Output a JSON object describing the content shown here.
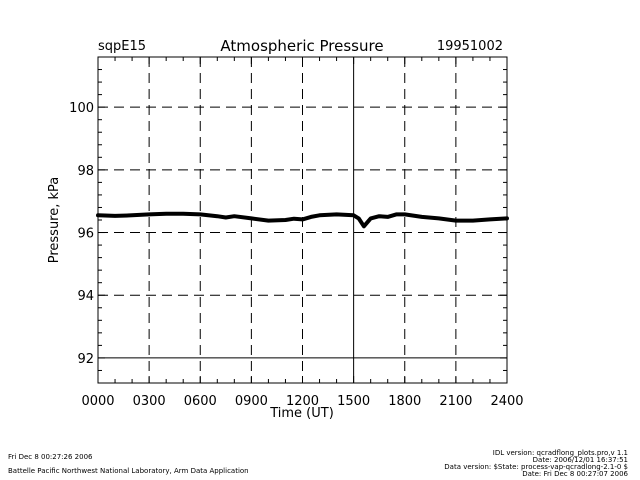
{
  "chart_data": {
    "type": "line",
    "title": "Atmospheric Pressure",
    "site": "sqpE15",
    "date": "19951002",
    "xlabel": "Time (UT)",
    "ylabel": "Pressure, kPa",
    "xlim": [
      0,
      2400
    ],
    "ylim": [
      91.2,
      101.6
    ],
    "x_ticks": [
      0,
      300,
      600,
      900,
      1200,
      1500,
      1800,
      2100,
      2400
    ],
    "x_tick_labels": [
      "0000",
      "0300",
      "0600",
      "0900",
      "1200",
      "1500",
      "1800",
      "2100",
      "2400"
    ],
    "y_ticks": [
      92,
      94,
      96,
      98,
      100
    ],
    "y_tick_labels": [
      "92",
      "94",
      "96",
      "98",
      "100"
    ],
    "solid_hlines": [
      92
    ],
    "solid_vlines": [
      1500
    ],
    "series": [
      {
        "name": "Atmospheric Pressure",
        "x": [
          0,
          100,
          200,
          300,
          400,
          500,
          600,
          700,
          750,
          800,
          900,
          1000,
          1100,
          1150,
          1200,
          1250,
          1300,
          1400,
          1500,
          1530,
          1560,
          1600,
          1650,
          1700,
          1750,
          1800,
          1900,
          2000,
          2100,
          2200,
          2300,
          2400
        ],
        "values": [
          96.55,
          96.53,
          96.55,
          96.58,
          96.6,
          96.6,
          96.58,
          96.52,
          96.48,
          96.52,
          96.45,
          96.38,
          96.4,
          96.44,
          96.42,
          96.5,
          96.55,
          96.58,
          96.55,
          96.45,
          96.2,
          96.45,
          96.52,
          96.5,
          96.58,
          96.58,
          96.5,
          96.45,
          96.38,
          96.38,
          96.42,
          96.45
        ]
      }
    ]
  },
  "footer": {
    "left_line1": "Fri Dec  8 00:27:26 2006",
    "left_line2": "Battelle Pacific Northwest National Laboratory, Arm Data Application",
    "right_line1": "IDL version: qcradflong_plots.pro,v 1.1",
    "right_line2": "Date: 2006/12/01 16:37:51",
    "right_line3": "Data version: $State: process-vap-qcradlong-2.1-0 $",
    "right_line4": "Date: Fri Dec  8 00:27:07 2006"
  }
}
